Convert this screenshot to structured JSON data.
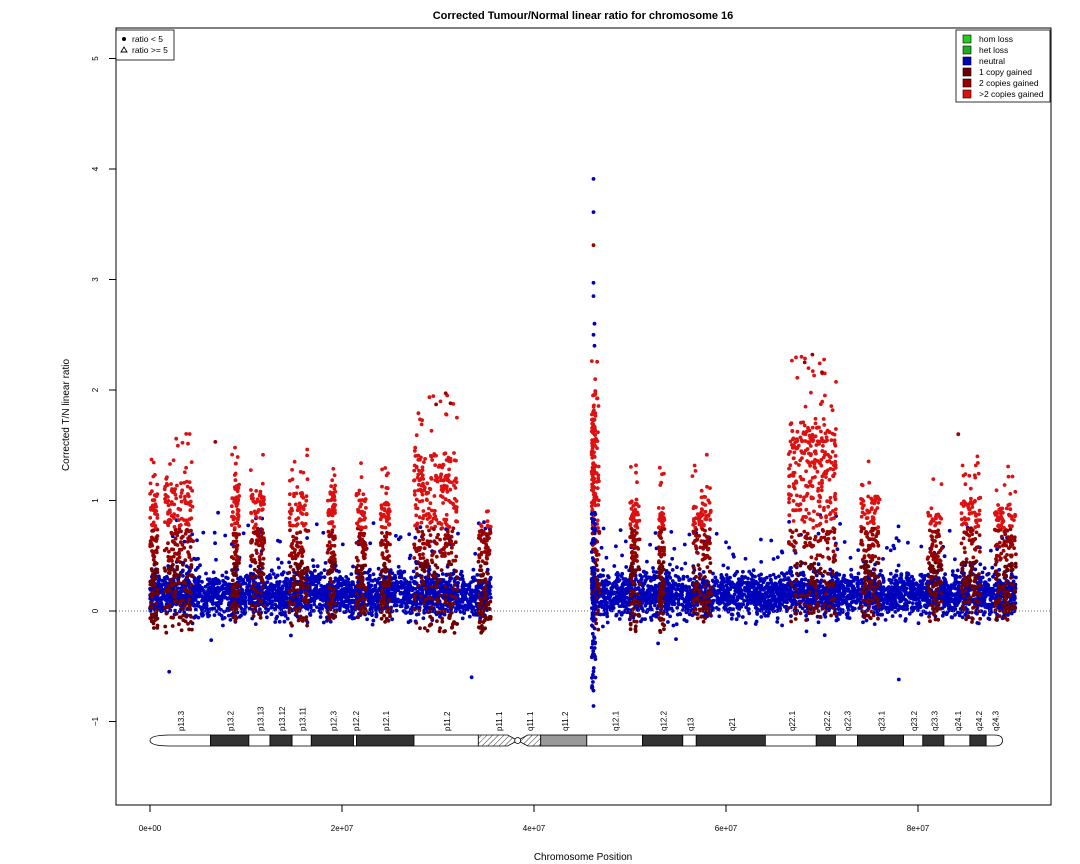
{
  "chart_data": {
    "type": "scatter",
    "title": "Corrected Tumour/Normal linear ratio for chromosome  16",
    "xlabel": "Chromosome Position",
    "ylabel": "Corrected T/N linear ratio",
    "xlim": [
      -2000000,
      93000000
    ],
    "ylim": [
      -1.8,
      5.3
    ],
    "x_ticks": [
      0,
      20000000,
      40000000,
      60000000,
      80000000
    ],
    "x_tick_labels": [
      "0e+00",
      "2e+07",
      "4e+07",
      "6e+07",
      "8e+07"
    ],
    "y_ticks": [
      -1,
      0,
      1,
      2,
      3,
      4,
      5
    ],
    "y_tick_labels": [
      "−1",
      "0",
      "1",
      "2",
      "3",
      "4",
      "5"
    ],
    "reference_line_y": 0,
    "shape_legend": {
      "position": "top-left",
      "items": [
        {
          "label": "ratio < 5",
          "symbol": "dot"
        },
        {
          "label": "ratio >= 5",
          "symbol": "triangle"
        }
      ]
    },
    "color_legend": {
      "position": "top-right",
      "items": [
        {
          "label": "hom loss",
          "color": "#22cc22"
        },
        {
          "label": "het loss",
          "color": "#22aa22"
        },
        {
          "label": "neutral",
          "color": "#0000bb"
        },
        {
          "label": "1 copy gained",
          "color": "#6e0000"
        },
        {
          "label": "2 copies gained",
          "color": "#990000"
        },
        {
          "label": ">2 copies gained",
          "color": "#dd1111"
        }
      ]
    },
    "series": [
      {
        "name": "neutral",
        "color": "#0000bb",
        "x_range": [
          0,
          90200000
        ],
        "gap": [
          35500000,
          46000000
        ],
        "y_typical": [
          -0.4,
          0.7
        ]
      },
      {
        "name": "1 copy gained",
        "color": "#6e0000"
      },
      {
        "name": "2 copies gained",
        "color": "#990000"
      },
      {
        "name": ">2 copies gained",
        "color": "#dd1111"
      }
    ],
    "gained_regions": [
      {
        "x": [
          0,
          800000
        ],
        "y_min": -0.2,
        "y_peak": 1.5
      },
      {
        "x": [
          1500000,
          4500000
        ],
        "y_min": -0.2,
        "y_peak": 1.63
      },
      {
        "x": [
          8500000,
          9300000
        ],
        "y_min": -0.1,
        "y_peak": 1.55
      },
      {
        "x": [
          10500000,
          12000000
        ],
        "y_min": -0.1,
        "y_peak": 1.52
      },
      {
        "x": [
          14500000,
          16500000
        ],
        "y_min": -0.2,
        "y_peak": 1.5
      },
      {
        "x": [
          18500000,
          19300000
        ],
        "y_min": -0.1,
        "y_peak": 1.49
      },
      {
        "x": [
          21500000,
          22500000
        ],
        "y_min": -0.1,
        "y_peak": 1.43
      },
      {
        "x": [
          24000000,
          25000000
        ],
        "y_min": -0.1,
        "y_peak": 1.35
      },
      {
        "x": [
          27500000,
          32000000
        ],
        "y_min": -0.2,
        "y_peak": 1.97
      },
      {
        "x": [
          34200000,
          35500000
        ],
        "y_min": -0.2,
        "y_peak": 1.1
      },
      {
        "x": [
          46000000,
          46800000
        ],
        "y_min": -0.2,
        "y_peak": 2.3
      },
      {
        "x": [
          50000000,
          51000000
        ],
        "y_min": -0.2,
        "y_peak": 1.4
      },
      {
        "x": [
          53000000,
          53600000
        ],
        "y_min": -0.2,
        "y_peak": 1.32
      },
      {
        "x": [
          56500000,
          58500000
        ],
        "y_min": -0.1,
        "y_peak": 1.43
      },
      {
        "x": [
          66500000,
          71500000
        ],
        "y_min": -0.1,
        "y_peak": 2.32
      },
      {
        "x": [
          74000000,
          76000000
        ],
        "y_min": -0.1,
        "y_peak": 1.42
      },
      {
        "x": [
          81000000,
          82500000
        ],
        "y_min": -0.1,
        "y_peak": 1.25
      },
      {
        "x": [
          84500000,
          86500000
        ],
        "y_min": -0.1,
        "y_peak": 1.4
      },
      {
        "x": [
          88000000,
          90200000
        ],
        "y_min": -0.1,
        "y_peak": 1.33
      }
    ],
    "outliers": [
      {
        "x": 46200000,
        "y": 3.91
      },
      {
        "x": 46200000,
        "y": 3.61
      },
      {
        "x": 46200000,
        "y": 3.31
      },
      {
        "x": 46200000,
        "y": 2.97
      },
      {
        "x": 46200000,
        "y": 2.85
      },
      {
        "x": 46300000,
        "y": 2.6
      },
      {
        "x": 46200000,
        "y": 2.5
      },
      {
        "x": 46300000,
        "y": 2.4
      },
      {
        "x": 46200000,
        "y": -0.72
      },
      {
        "x": 46200000,
        "y": -0.86
      },
      {
        "x": 68200000,
        "y": 2.25
      },
      {
        "x": 69000000,
        "y": 2.32
      },
      {
        "x": 70000000,
        "y": 2.16
      },
      {
        "x": 29800000,
        "y": 1.87
      },
      {
        "x": 30800000,
        "y": 1.97
      },
      {
        "x": 31300000,
        "y": 1.88
      },
      {
        "x": 84200000,
        "y": 1.6
      },
      {
        "x": 6800000,
        "y": 1.53
      },
      {
        "x": 2000000,
        "y": -0.55
      },
      {
        "x": 33500000,
        "y": -0.6
      },
      {
        "x": 78000000,
        "y": -0.62
      }
    ],
    "ideogram": {
      "bands": [
        {
          "name": "p13.3",
          "start": 0,
          "end": 6300000,
          "stain": "gneg"
        },
        {
          "name": "p13.2",
          "start": 6300000,
          "end": 10300000,
          "stain": "gpos"
        },
        {
          "name": "p13.13",
          "start": 10300000,
          "end": 12500000,
          "stain": "gneg"
        },
        {
          "name": "p13.12",
          "start": 12500000,
          "end": 14800000,
          "stain": "gpos"
        },
        {
          "name": "p13.11",
          "start": 14800000,
          "end": 16800000,
          "stain": "gneg"
        },
        {
          "name": "p12.3",
          "start": 16800000,
          "end": 21200000,
          "stain": "gpos"
        },
        {
          "name": "p12.2",
          "start": 21200000,
          "end": 21500000,
          "stain": "gneg"
        },
        {
          "name": "p12.1",
          "start": 21500000,
          "end": 27500000,
          "stain": "gpos"
        },
        {
          "name": "p11.2",
          "start": 27500000,
          "end": 34200000,
          "stain": "gneg"
        },
        {
          "name": "p11.1",
          "start": 34200000,
          "end": 38300000,
          "stain": "acen"
        },
        {
          "name": "q11.1",
          "start": 38300000,
          "end": 40700000,
          "stain": "acen"
        },
        {
          "name": "q11.2",
          "start": 40700000,
          "end": 45500000,
          "stain": "gvar"
        },
        {
          "name": "q12.1",
          "start": 45500000,
          "end": 51300000,
          "stain": "gneg"
        },
        {
          "name": "q12.2",
          "start": 51300000,
          "end": 55500000,
          "stain": "gpos"
        },
        {
          "name": "q13",
          "start": 55500000,
          "end": 56900000,
          "stain": "gneg"
        },
        {
          "name": "q21",
          "start": 56900000,
          "end": 64100000,
          "stain": "gpos"
        },
        {
          "name": "q22.1",
          "start": 64100000,
          "end": 69400000,
          "stain": "gneg"
        },
        {
          "name": "q22.2",
          "start": 69400000,
          "end": 71400000,
          "stain": "gpos"
        },
        {
          "name": "q22.3",
          "start": 71400000,
          "end": 73700000,
          "stain": "gneg"
        },
        {
          "name": "q23.1",
          "start": 73700000,
          "end": 78500000,
          "stain": "gpos"
        },
        {
          "name": "q23.2",
          "start": 78500000,
          "end": 80500000,
          "stain": "gneg"
        },
        {
          "name": "q23.3",
          "start": 80500000,
          "end": 82700000,
          "stain": "gpos"
        },
        {
          "name": "q24.1",
          "start": 82700000,
          "end": 85400000,
          "stain": "gneg"
        },
        {
          "name": "q24.2",
          "start": 85400000,
          "end": 87100000,
          "stain": "gpos"
        },
        {
          "name": "q24.3",
          "start": 87100000,
          "end": 88800000,
          "stain": "gneg"
        }
      ]
    }
  }
}
